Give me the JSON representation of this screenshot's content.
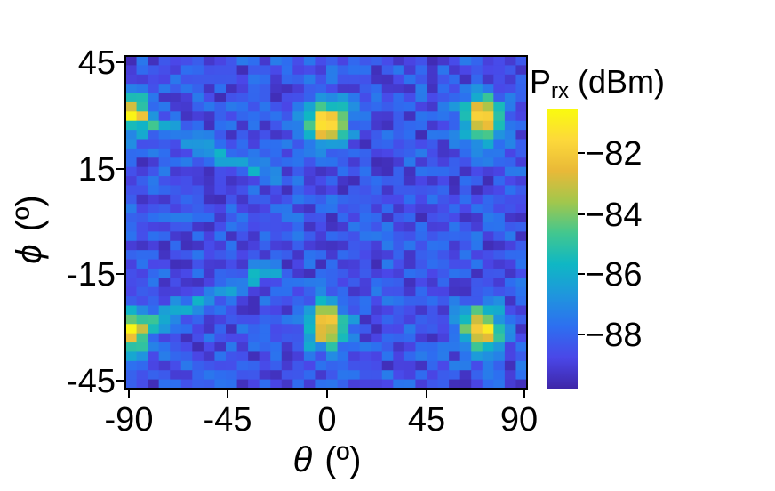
{
  "chart_data": {
    "type": "heatmap",
    "title": "",
    "xlabel": "θ (º)",
    "xlabel_symbol": "θ",
    "xlabel_unit": "(º)",
    "ylabel": "ϕ (º)",
    "ylabel_symbol": "ϕ",
    "ylabel_unit": "(º)",
    "xlim": [
      -90,
      90
    ],
    "ylim": [
      -45,
      45
    ],
    "x_ticks": [
      "-90",
      "-45",
      "0",
      "45",
      "90"
    ],
    "y_ticks": [
      "45",
      "15",
      "-15",
      "-45"
    ],
    "grid": false,
    "colorbar": {
      "title": "P",
      "title_subscript": "rx",
      "title_unit": "(dBm)",
      "range": [
        -89.8,
        -80.6
      ],
      "ticks": [
        "−82",
        "−84",
        "−86",
        "−88"
      ],
      "colormap": "parula",
      "colors": [
        "#3e26a8",
        "#4a47e8",
        "#2d6ff0",
        "#1f96dd",
        "#0fb7c4",
        "#42c78f",
        "#a2c74c",
        "#e9b938",
        "#fdd93a",
        "#f9fb0e"
      ]
    },
    "grid_resolution": {
      "theta_columns": 36,
      "phi_rows": 36
    },
    "hotspots": [
      {
        "theta": 0,
        "phi": 27,
        "peak_dBm": -81.5
      },
      {
        "theta": 70,
        "phi": 28,
        "peak_dBm": -81.5
      },
      {
        "theta": 0,
        "phi": -28,
        "peak_dBm": -81.8
      },
      {
        "theta": 70,
        "phi": -29,
        "peak_dBm": -81.6
      },
      {
        "theta": -88,
        "phi": 30,
        "peak_dBm": -83.5
      },
      {
        "theta": -88,
        "phi": -30,
        "peak_dBm": -83.5
      }
    ],
    "background_dBm": -88.5
  }
}
